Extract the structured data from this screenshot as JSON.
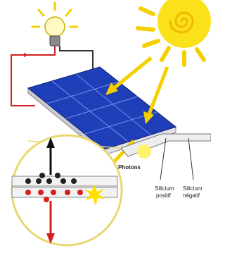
{
  "labels": {
    "photons": "Photons",
    "silicon_positive": [
      "Silicium",
      "positif"
    ],
    "silicon_negative": [
      "Silicium",
      "négatif"
    ]
  }
}
